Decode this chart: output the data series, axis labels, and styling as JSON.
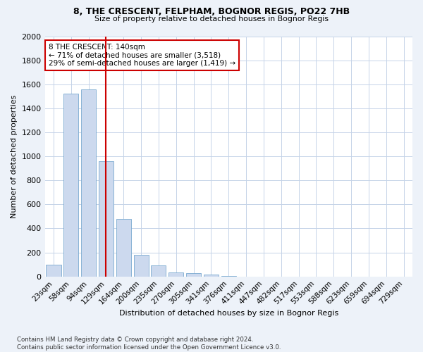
{
  "title1": "8, THE CRESCENT, FELPHAM, BOGNOR REGIS, PO22 7HB",
  "title2": "Size of property relative to detached houses in Bognor Regis",
  "xlabel": "Distribution of detached houses by size in Bognor Regis",
  "ylabel": "Number of detached properties",
  "categories": [
    "23sqm",
    "58sqm",
    "94sqm",
    "129sqm",
    "164sqm",
    "200sqm",
    "235sqm",
    "270sqm",
    "305sqm",
    "341sqm",
    "376sqm",
    "411sqm",
    "447sqm",
    "482sqm",
    "517sqm",
    "553sqm",
    "588sqm",
    "623sqm",
    "659sqm",
    "694sqm",
    "729sqm"
  ],
  "values": [
    100,
    1520,
    1560,
    960,
    480,
    180,
    90,
    35,
    25,
    15,
    5,
    0,
    0,
    0,
    0,
    0,
    0,
    0,
    0,
    0,
    0
  ],
  "bar_color": "#ccd9ee",
  "bar_edge_color": "#7aaad0",
  "vline_color": "#cc0000",
  "vline_x": 3,
  "annotation_text": "8 THE CRESCENT: 140sqm\n← 71% of detached houses are smaller (3,518)\n29% of semi-detached houses are larger (1,419) →",
  "annotation_box_color": "white",
  "annotation_box_edge": "#cc0000",
  "ylim": [
    0,
    2000
  ],
  "yticks": [
    0,
    200,
    400,
    600,
    800,
    1000,
    1200,
    1400,
    1600,
    1800,
    2000
  ],
  "footnote": "Contains HM Land Registry data © Crown copyright and database right 2024.\nContains public sector information licensed under the Open Government Licence v3.0.",
  "bg_color": "#edf2f9",
  "plot_bg_color": "#ffffff",
  "grid_color": "#c5d3e8"
}
